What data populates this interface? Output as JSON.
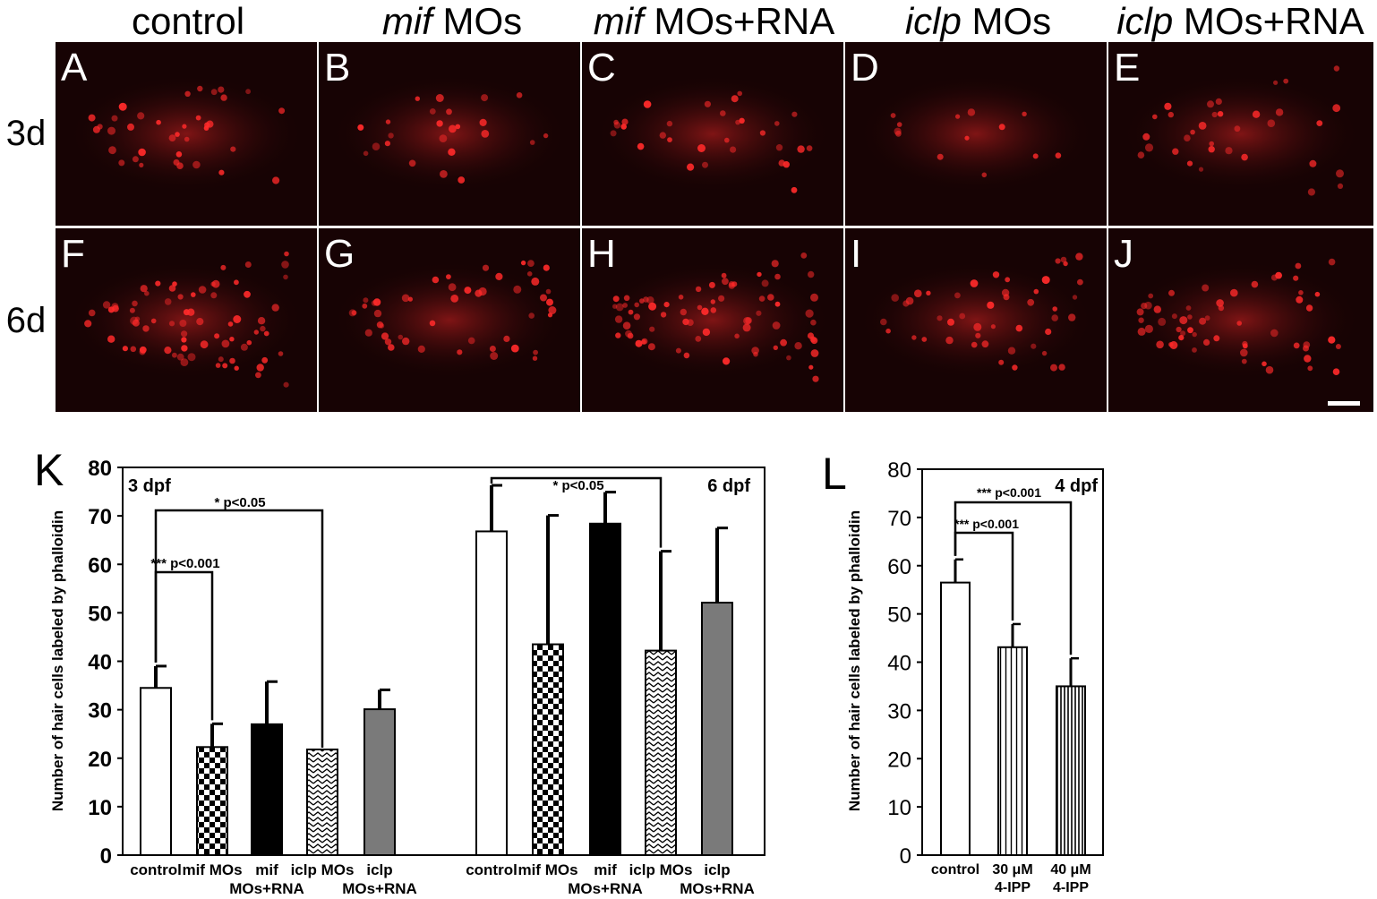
{
  "columns": [
    {
      "italic": "",
      "rest": "control"
    },
    {
      "italic": "mif",
      "rest": " MOs"
    },
    {
      "italic": "mif",
      "rest": " MOs+RNA"
    },
    {
      "italic": "iclp",
      "rest": " MOs"
    },
    {
      "italic": "iclp",
      "rest": " MOs+RNA"
    }
  ],
  "rows": [
    "3d",
    "6d"
  ],
  "panel_letters": [
    "A",
    "B",
    "C",
    "D",
    "E",
    "F",
    "G",
    "H",
    "I",
    "J"
  ],
  "colors": {
    "fluorescence": "#ff2a2a",
    "panel_bg": "#170304",
    "gray_bar": "#7a7a7a"
  },
  "chart_K": {
    "letter": "K",
    "ylabel": "Number of hair cells labeled by phalloidin",
    "y_ticks": [
      "0",
      "10",
      "20",
      "30",
      "40",
      "50",
      "60",
      "70",
      "80"
    ],
    "group_labels": [
      "3 dpf",
      "6 dpf"
    ],
    "x_labels": [
      {
        "line1": "control",
        "line2": ""
      },
      {
        "line1": "mif MOs",
        "line2": ""
      },
      {
        "line1": "mif",
        "line2": "MOs+RNA"
      },
      {
        "line1": "iclp MOs",
        "line2": ""
      },
      {
        "line1": "iclp",
        "line2": "MOs+RNA"
      }
    ],
    "annotations": [
      "*** p<0.001",
      "* p<0.05",
      "* p<0.05"
    ]
  },
  "chart_L": {
    "letter": "L",
    "ylabel": "Number of hair cells labeled by phalloidin",
    "y_ticks": [
      "0",
      "10",
      "20",
      "30",
      "40",
      "50",
      "60",
      "70",
      "80"
    ],
    "group_label": "4 dpf",
    "x_labels": [
      {
        "line1": "control",
        "line2": ""
      },
      {
        "line1": "30 μM",
        "line2": "4-IPP"
      },
      {
        "line1": "40 μM",
        "line2": "4-IPP"
      }
    ],
    "annotations": [
      "*** p<0.001",
      "*** p<0.001"
    ]
  },
  "chart_data": [
    {
      "type": "bar",
      "ylabel": "Number of hair cells labeled by phalloidin",
      "ylim": [
        0,
        80
      ],
      "categories": [
        "control",
        "mif MOs",
        "mif MOs+RNA",
        "iclp MOs",
        "iclp MOs+RNA"
      ],
      "series": [
        {
          "name": "3 dpf",
          "values": [
            34.5,
            22.3,
            27.0,
            21.8,
            30.1
          ],
          "errors": [
            4.5,
            4.8,
            8.8,
            0,
            4.0
          ]
        },
        {
          "name": "6 dpf",
          "values": [
            66.8,
            43.5,
            68.4,
            42.2,
            52.1
          ],
          "errors": [
            9.5,
            26.6,
            6.5,
            20.5,
            15.4
          ]
        }
      ]
    },
    {
      "type": "bar",
      "ylabel": "Number of hair cells labeled by phalloidin",
      "ylim": [
        0,
        80
      ],
      "categories": [
        "control",
        "30 μM 4-IPP",
        "40 μM 4-IPP"
      ],
      "series": [
        {
          "name": "4 dpf",
          "values": [
            56.5,
            43.1,
            35.0
          ],
          "errors": [
            4.8,
            4.8,
            5.8
          ]
        }
      ]
    }
  ]
}
